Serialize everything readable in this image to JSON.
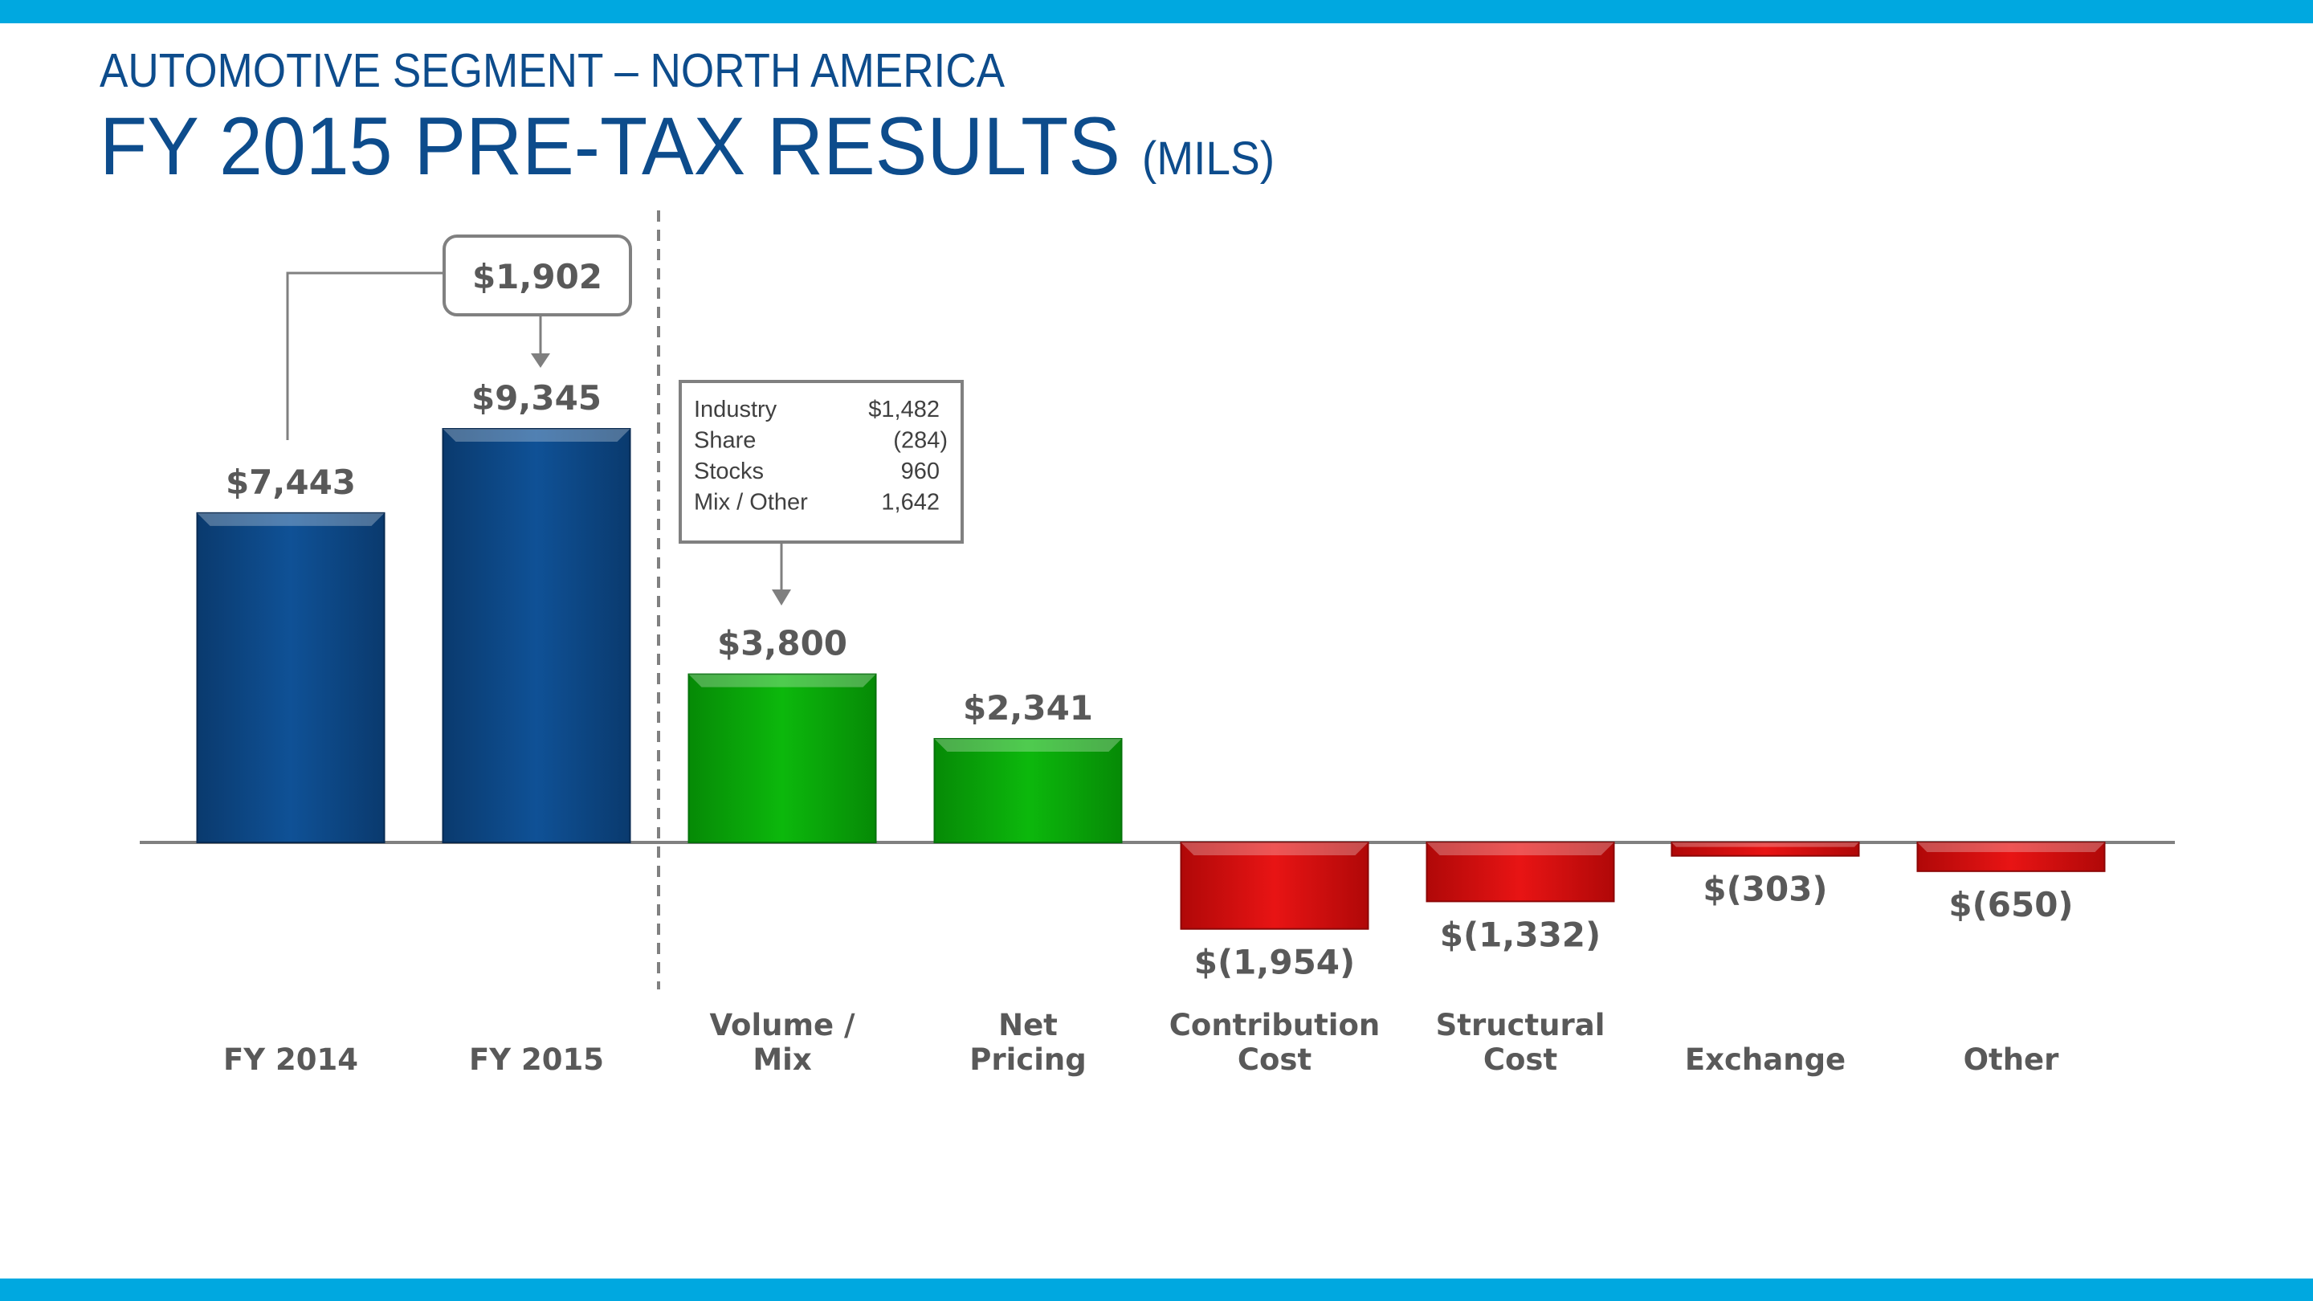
{
  "header": {
    "subtitle": "AUTOMOTIVE SEGMENT – NORTH AMERICA",
    "title": "FY 2015 PRE-TAX RESULTS",
    "title_unit": "(MILS)"
  },
  "colors": {
    "band": "#00a8e0",
    "title": "#0d4c8c",
    "total": "#0c4a86",
    "increase": "#08a808",
    "decrease": "#d80a0a",
    "label": "#595959"
  },
  "chart_data": {
    "type": "bar",
    "title": "FY 2015 PRE-TAX RESULTS (MILS)",
    "xlabel": "",
    "ylabel": "",
    "ylim": [
      -2500,
      10500
    ],
    "categories": [
      "FY 2014",
      "FY 2015",
      "Volume / Mix",
      "Net Pricing",
      "Contribution Cost",
      "Structural Cost",
      "Exchange",
      "Other"
    ],
    "category_lines": [
      [
        "FY 2014"
      ],
      [
        "FY 2015"
      ],
      [
        "Volume /",
        "Mix"
      ],
      [
        "Net",
        "Pricing"
      ],
      [
        "Contribution",
        "Cost"
      ],
      [
        "Structural",
        "Cost"
      ],
      [
        "Exchange"
      ],
      [
        "Other"
      ]
    ],
    "values": [
      7443,
      9345,
      3800,
      2341,
      -1954,
      -1332,
      -303,
      -650
    ],
    "kinds": [
      "total",
      "total",
      "increase",
      "increase",
      "decrease",
      "decrease",
      "decrease",
      "decrease"
    ],
    "value_labels": [
      "$7,443",
      "$9,345",
      "$3,800",
      "$2,341",
      "$(1,954)",
      "$(1,332)",
      "$(303)",
      "$(650)"
    ],
    "change": {
      "value": 1902,
      "label": "$1,902",
      "from": "FY 2014",
      "to": "FY 2015"
    },
    "breakdown": {
      "target": "Volume / Mix",
      "rows": [
        {
          "label": "Industry",
          "value": "$1,482"
        },
        {
          "label": "Share",
          "value": "(284)"
        },
        {
          "label": "Stocks",
          "value": "960"
        },
        {
          "label": "Mix / Other",
          "value": "1,642"
        }
      ]
    }
  }
}
